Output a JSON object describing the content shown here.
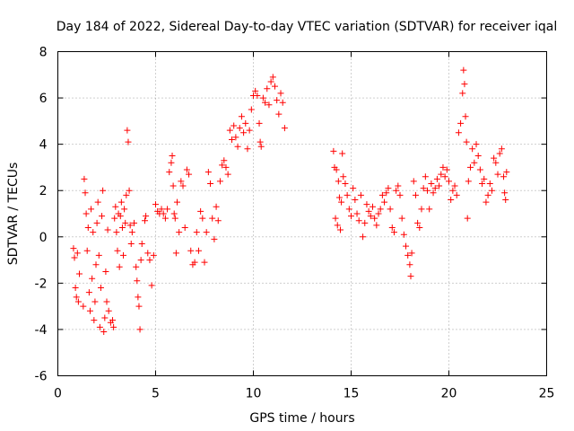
{
  "chart_data": {
    "type": "scatter",
    "title": "Day 184 of 2022, Sidereal Day-to-day VTEC variation (SDTVAR) for receiver iqal",
    "xlabel": "GPS time / hours",
    "ylabel": "SDTVAR / TECUs",
    "xlim": [
      0,
      25
    ],
    "ylim": [
      -6,
      8
    ],
    "xticks": [
      "0",
      "5",
      "10",
      "15",
      "20",
      "25"
    ],
    "yticks": [
      "-6",
      "-4",
      "-2",
      "0",
      "2",
      "4",
      "6",
      "8"
    ],
    "grid": true,
    "marker": "+",
    "color": "#ff0000",
    "series": [
      {
        "name": "SDTVAR",
        "points": [
          [
            0.8,
            -0.5
          ],
          [
            0.85,
            -0.9
          ],
          [
            0.9,
            -2.2
          ],
          [
            0.95,
            -2.6
          ],
          [
            1.0,
            -0.7
          ],
          [
            1.05,
            -2.8
          ],
          [
            1.1,
            -1.6
          ],
          [
            1.3,
            -3.0
          ],
          [
            1.35,
            2.5
          ],
          [
            1.4,
            1.9
          ],
          [
            1.45,
            1.0
          ],
          [
            1.5,
            -0.6
          ],
          [
            1.55,
            0.4
          ],
          [
            1.6,
            -2.4
          ],
          [
            1.65,
            -3.2
          ],
          [
            1.7,
            1.2
          ],
          [
            1.75,
            -1.8
          ],
          [
            1.8,
            0.2
          ],
          [
            1.85,
            -3.6
          ],
          [
            1.9,
            -2.8
          ],
          [
            1.95,
            -1.2
          ],
          [
            2.0,
            0.6
          ],
          [
            2.05,
            1.5
          ],
          [
            2.1,
            -0.8
          ],
          [
            2.15,
            -3.9
          ],
          [
            2.2,
            -2.2
          ],
          [
            2.25,
            0.9
          ],
          [
            2.3,
            2.0
          ],
          [
            2.35,
            -4.1
          ],
          [
            2.4,
            -3.5
          ],
          [
            2.45,
            -1.5
          ],
          [
            2.5,
            -2.8
          ],
          [
            2.55,
            0.3
          ],
          [
            2.6,
            -3.2
          ],
          [
            2.7,
            -3.7
          ],
          [
            2.8,
            -3.6
          ],
          [
            2.85,
            -3.9
          ],
          [
            2.9,
            0.8
          ],
          [
            2.95,
            1.3
          ],
          [
            3.0,
            0.2
          ],
          [
            3.05,
            -0.6
          ],
          [
            3.1,
            1.0
          ],
          [
            3.15,
            -1.3
          ],
          [
            3.2,
            0.9
          ],
          [
            3.25,
            1.5
          ],
          [
            3.3,
            0.4
          ],
          [
            3.35,
            -0.8
          ],
          [
            3.4,
            1.2
          ],
          [
            3.45,
            0.6
          ],
          [
            3.5,
            1.8
          ],
          [
            3.55,
            4.6
          ],
          [
            3.6,
            4.1
          ],
          [
            3.65,
            2.0
          ],
          [
            3.7,
            0.5
          ],
          [
            3.75,
            -0.3
          ],
          [
            3.8,
            0.2
          ],
          [
            3.9,
            0.6
          ],
          [
            4.0,
            -1.3
          ],
          [
            4.05,
            -1.9
          ],
          [
            4.1,
            -2.6
          ],
          [
            4.15,
            -3.0
          ],
          [
            4.2,
            -4.0
          ],
          [
            4.25,
            -1.0
          ],
          [
            4.3,
            -0.3
          ],
          [
            4.45,
            0.7
          ],
          [
            4.5,
            0.9
          ],
          [
            4.6,
            -0.7
          ],
          [
            4.7,
            -1.0
          ],
          [
            4.8,
            -2.1
          ],
          [
            4.9,
            -0.8
          ],
          [
            5.0,
            1.4
          ],
          [
            5.1,
            1.1
          ],
          [
            5.2,
            1.0
          ],
          [
            5.3,
            1.2
          ],
          [
            5.4,
            1.0
          ],
          [
            5.5,
            0.8
          ],
          [
            5.6,
            1.2
          ],
          [
            5.7,
            2.8
          ],
          [
            5.8,
            3.2
          ],
          [
            5.85,
            3.5
          ],
          [
            5.9,
            2.2
          ],
          [
            5.95,
            1.0
          ],
          [
            6.0,
            0.8
          ],
          [
            6.05,
            -0.7
          ],
          [
            6.1,
            1.5
          ],
          [
            6.2,
            0.2
          ],
          [
            6.3,
            2.4
          ],
          [
            6.4,
            2.2
          ],
          [
            6.5,
            0.4
          ],
          [
            6.6,
            2.9
          ],
          [
            6.7,
            2.7
          ],
          [
            6.8,
            -0.6
          ],
          [
            6.9,
            -1.2
          ],
          [
            7.0,
            -1.1
          ],
          [
            7.1,
            0.2
          ],
          [
            7.2,
            -0.6
          ],
          [
            7.3,
            1.1
          ],
          [
            7.4,
            0.8
          ],
          [
            7.5,
            -1.1
          ],
          [
            7.6,
            0.2
          ],
          [
            7.7,
            2.8
          ],
          [
            7.8,
            2.3
          ],
          [
            7.9,
            0.8
          ],
          [
            8.0,
            -0.1
          ],
          [
            8.1,
            1.3
          ],
          [
            8.2,
            0.7
          ],
          [
            8.3,
            2.4
          ],
          [
            8.4,
            3.1
          ],
          [
            8.5,
            3.3
          ],
          [
            8.6,
            3.0
          ],
          [
            8.7,
            2.7
          ],
          [
            8.8,
            4.6
          ],
          [
            8.9,
            4.2
          ],
          [
            9.0,
            4.8
          ],
          [
            9.1,
            4.3
          ],
          [
            9.2,
            3.9
          ],
          [
            9.3,
            4.7
          ],
          [
            9.4,
            5.2
          ],
          [
            9.5,
            4.5
          ],
          [
            9.6,
            4.9
          ],
          [
            9.7,
            3.8
          ],
          [
            9.8,
            4.6
          ],
          [
            9.9,
            5.5
          ],
          [
            10.0,
            6.1
          ],
          [
            10.1,
            6.3
          ],
          [
            10.2,
            6.1
          ],
          [
            10.3,
            4.9
          ],
          [
            10.35,
            4.1
          ],
          [
            10.4,
            3.9
          ],
          [
            10.5,
            6.0
          ],
          [
            10.6,
            5.8
          ],
          [
            10.7,
            6.4
          ],
          [
            10.8,
            5.7
          ],
          [
            10.9,
            6.7
          ],
          [
            11.0,
            6.9
          ],
          [
            11.1,
            6.5
          ],
          [
            11.2,
            5.9
          ],
          [
            11.3,
            5.3
          ],
          [
            11.4,
            6.2
          ],
          [
            11.5,
            5.8
          ],
          [
            11.6,
            4.7
          ],
          [
            14.1,
            3.7
          ],
          [
            14.15,
            3.0
          ],
          [
            14.2,
            0.8
          ],
          [
            14.25,
            2.9
          ],
          [
            14.3,
            0.5
          ],
          [
            14.35,
            2.4
          ],
          [
            14.4,
            1.7
          ],
          [
            14.45,
            0.3
          ],
          [
            14.5,
            1.5
          ],
          [
            14.55,
            3.6
          ],
          [
            14.6,
            2.6
          ],
          [
            14.7,
            2.3
          ],
          [
            14.8,
            1.8
          ],
          [
            14.9,
            1.2
          ],
          [
            15.0,
            0.9
          ],
          [
            15.1,
            2.1
          ],
          [
            15.2,
            1.6
          ],
          [
            15.3,
            1.0
          ],
          [
            15.4,
            0.7
          ],
          [
            15.5,
            1.8
          ],
          [
            15.6,
            0.0
          ],
          [
            15.7,
            0.6
          ],
          [
            15.8,
            1.4
          ],
          [
            15.9,
            1.1
          ],
          [
            16.0,
            0.9
          ],
          [
            16.1,
            1.3
          ],
          [
            16.2,
            0.8
          ],
          [
            16.3,
            0.5
          ],
          [
            16.4,
            1.0
          ],
          [
            16.5,
            1.2
          ],
          [
            16.6,
            1.8
          ],
          [
            16.7,
            1.5
          ],
          [
            16.8,
            1.9
          ],
          [
            16.9,
            2.1
          ],
          [
            17.0,
            1.2
          ],
          [
            17.1,
            0.4
          ],
          [
            17.2,
            0.2
          ],
          [
            17.3,
            2.0
          ],
          [
            17.4,
            2.2
          ],
          [
            17.5,
            1.8
          ],
          [
            17.6,
            0.8
          ],
          [
            17.7,
            0.1
          ],
          [
            17.8,
            -0.4
          ],
          [
            17.9,
            -0.8
          ],
          [
            18.0,
            -1.2
          ],
          [
            18.05,
            -1.7
          ],
          [
            18.1,
            -0.7
          ],
          [
            18.2,
            2.4
          ],
          [
            18.3,
            1.8
          ],
          [
            18.4,
            0.6
          ],
          [
            18.5,
            0.4
          ],
          [
            18.6,
            1.2
          ],
          [
            18.7,
            2.1
          ],
          [
            18.8,
            2.6
          ],
          [
            18.9,
            2.0
          ],
          [
            19.0,
            1.2
          ],
          [
            19.1,
            2.3
          ],
          [
            19.2,
            1.9
          ],
          [
            19.3,
            2.1
          ],
          [
            19.4,
            2.5
          ],
          [
            19.5,
            2.2
          ],
          [
            19.6,
            2.7
          ],
          [
            19.7,
            3.0
          ],
          [
            19.8,
            2.6
          ],
          [
            19.9,
            2.9
          ],
          [
            20.0,
            2.4
          ],
          [
            20.1,
            1.6
          ],
          [
            20.2,
            2.0
          ],
          [
            20.3,
            2.2
          ],
          [
            20.4,
            1.8
          ],
          [
            20.5,
            4.5
          ],
          [
            20.6,
            4.9
          ],
          [
            20.7,
            6.2
          ],
          [
            20.75,
            7.2
          ],
          [
            20.8,
            6.6
          ],
          [
            20.85,
            5.2
          ],
          [
            20.9,
            4.1
          ],
          [
            20.95,
            0.8
          ],
          [
            21.0,
            2.4
          ],
          [
            21.1,
            3.0
          ],
          [
            21.2,
            3.8
          ],
          [
            21.3,
            3.2
          ],
          [
            21.4,
            4.0
          ],
          [
            21.5,
            3.5
          ],
          [
            21.6,
            2.9
          ],
          [
            21.7,
            2.3
          ],
          [
            21.8,
            2.5
          ],
          [
            21.9,
            1.5
          ],
          [
            22.0,
            1.8
          ],
          [
            22.1,
            2.3
          ],
          [
            22.2,
            2.0
          ],
          [
            22.3,
            3.4
          ],
          [
            22.4,
            3.2
          ],
          [
            22.5,
            2.7
          ],
          [
            22.6,
            3.6
          ],
          [
            22.7,
            3.8
          ],
          [
            22.8,
            2.6
          ],
          [
            22.85,
            1.9
          ],
          [
            22.9,
            1.6
          ],
          [
            22.95,
            2.8
          ]
        ]
      }
    ]
  }
}
